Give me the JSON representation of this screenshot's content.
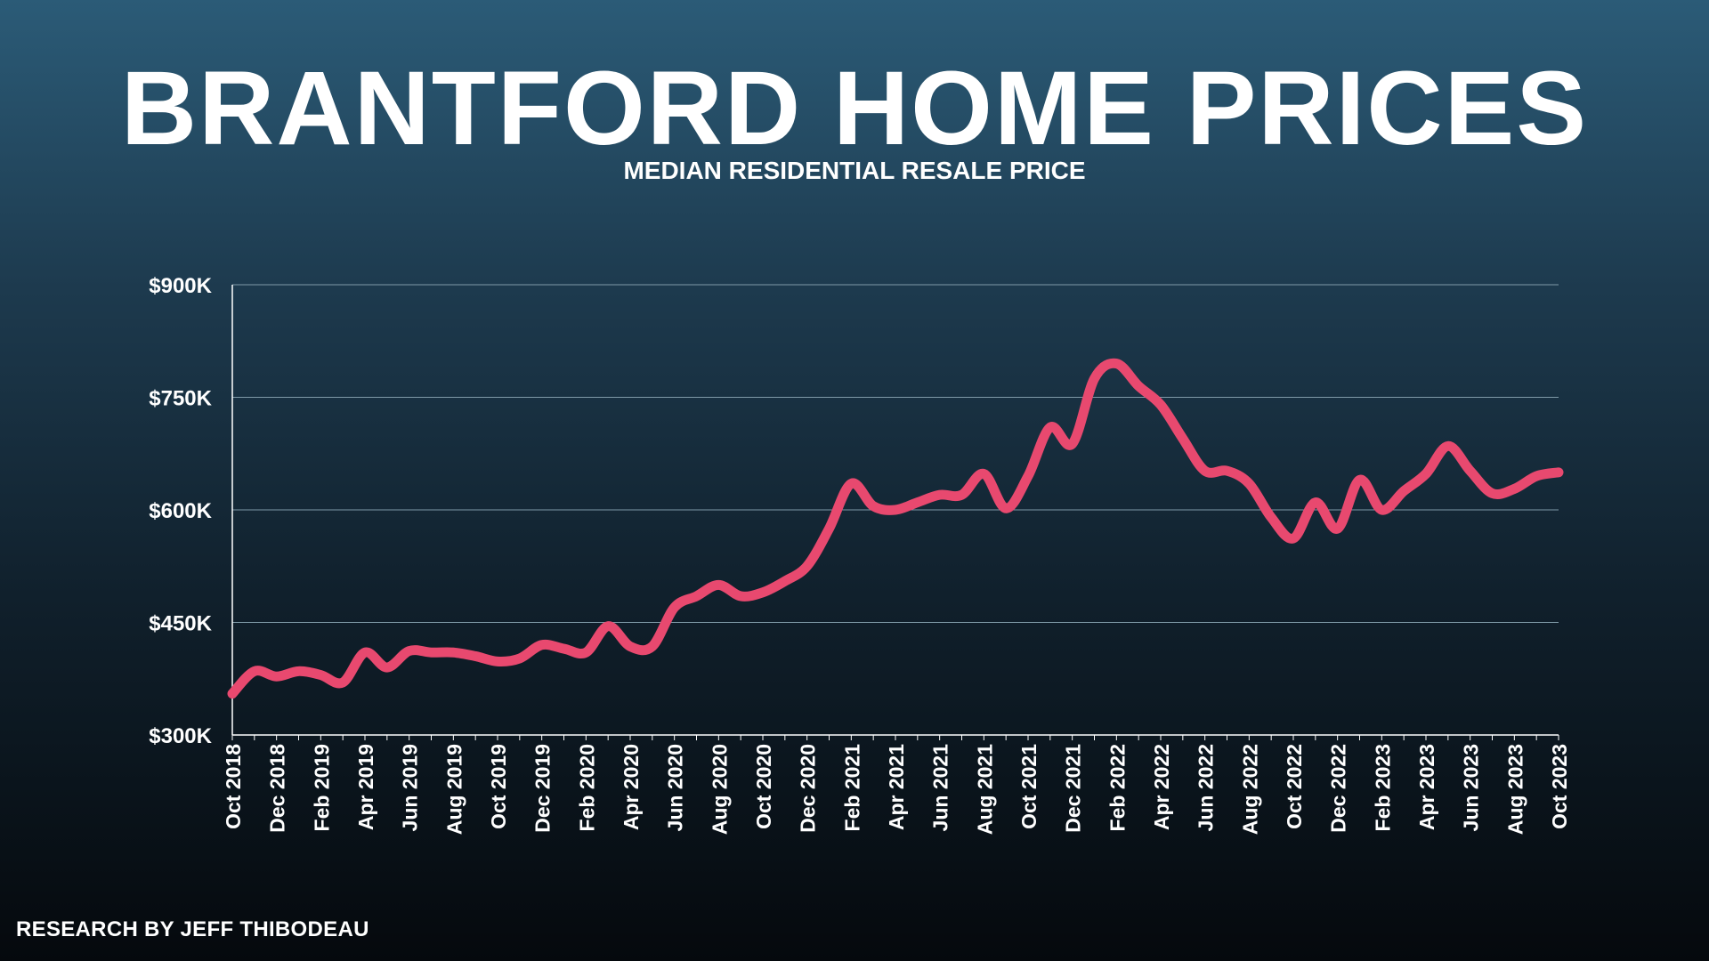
{
  "title": "BRANTFORD HOME PRICES",
  "subtitle": "MEDIAN RESIDENTIAL RESALE PRICE",
  "credit": "RESEARCH BY JEFF THIBODEAU",
  "colors": {
    "line": "#e8496f",
    "grid": "#7f9aa8",
    "axis": "#ffffff"
  },
  "chart_data": {
    "type": "line",
    "title": "BRANTFORD HOME PRICES",
    "subtitle": "MEDIAN RESIDENTIAL RESALE PRICE",
    "xlabel": "",
    "ylabel": "",
    "ylim": [
      300000,
      900000
    ],
    "yticks": [
      300000,
      450000,
      600000,
      750000,
      900000
    ],
    "ytick_labels": [
      "$300K",
      "$450K",
      "$600K",
      "$750K",
      "$900K"
    ],
    "grid": true,
    "x": [
      "Oct 2018",
      "Nov 2018",
      "Dec 2018",
      "Jan 2019",
      "Feb 2019",
      "Mar 2019",
      "Apr 2019",
      "May 2019",
      "Jun 2019",
      "Jul 2019",
      "Aug 2019",
      "Sep 2019",
      "Oct 2019",
      "Nov 2019",
      "Dec 2019",
      "Jan 2020",
      "Feb 2020",
      "Mar 2020",
      "Apr 2020",
      "May 2020",
      "Jun 2020",
      "Jul 2020",
      "Aug 2020",
      "Sep 2020",
      "Oct 2020",
      "Nov 2020",
      "Dec 2020",
      "Jan 2021",
      "Feb 2021",
      "Mar 2021",
      "Apr 2021",
      "May 2021",
      "Jun 2021",
      "Jul 2021",
      "Aug 2021",
      "Sep 2021",
      "Oct 2021",
      "Nov 2021",
      "Dec 2021",
      "Jan 2022",
      "Feb 2022",
      "Mar 2022",
      "Apr 2022",
      "May 2022",
      "Jun 2022",
      "Jul 2022",
      "Aug 2022",
      "Sep 2022",
      "Oct 2022",
      "Nov 2022",
      "Dec 2022",
      "Jan 2023",
      "Feb 2023",
      "Mar 2023",
      "Apr 2023",
      "May 2023",
      "Jun 2023",
      "Jul 2023",
      "Aug 2023",
      "Sep 2023",
      "Oct 2023"
    ],
    "xtick_labels": [
      "Oct 2018",
      "Dec 2018",
      "Feb 2019",
      "Apr 2019",
      "Jun 2019",
      "Aug 2019",
      "Oct 2019",
      "Dec 2019",
      "Feb 2020",
      "Apr 2020",
      "Jun 2020",
      "Aug 2020",
      "Oct 2020",
      "Dec 2020",
      "Feb 2021",
      "Apr 2021",
      "Jun 2021",
      "Aug 2021",
      "Oct 2021",
      "Dec 2021",
      "Feb 2022",
      "Apr 2022",
      "Jun 2022",
      "Aug 2022",
      "Oct 2022",
      "Dec 2022",
      "Feb 2023",
      "Apr 2023",
      "Jun 2023",
      "Aug 2023",
      "Oct 2023"
    ],
    "series": [
      {
        "values": [
          355000,
          385000,
          378000,
          385000,
          380000,
          370000,
          410000,
          390000,
          412000,
          410000,
          410000,
          405000,
          398000,
          402000,
          420000,
          415000,
          410000,
          445000,
          418000,
          418000,
          470000,
          485000,
          500000,
          485000,
          490000,
          505000,
          525000,
          575000,
          635000,
          605000,
          600000,
          610000,
          620000,
          620000,
          648000,
          602000,
          645000,
          710000,
          688000,
          775000,
          795000,
          765000,
          740000,
          695000,
          652000,
          652000,
          635000,
          590000,
          562000,
          610000,
          575000,
          640000,
          600000,
          625000,
          648000,
          685000,
          652000,
          622000,
          628000,
          645000,
          650000
        ]
      }
    ]
  }
}
